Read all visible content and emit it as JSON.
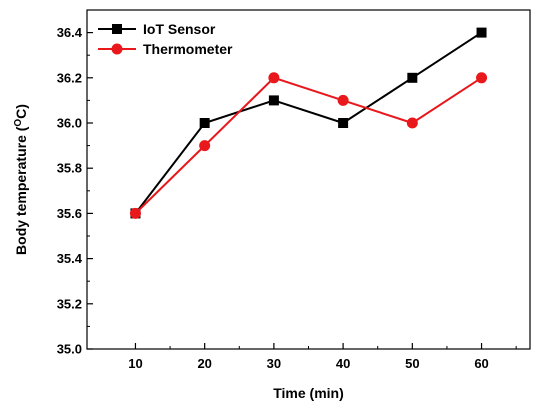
{
  "chart_data": {
    "type": "line",
    "x": [
      10,
      20,
      30,
      40,
      50,
      60
    ],
    "series": [
      {
        "name": "IoT Sensor",
        "values": [
          35.6,
          36.0,
          36.1,
          36.0,
          36.2,
          36.4
        ],
        "color": "#000000",
        "marker": "square"
      },
      {
        "name": "Thermometer",
        "values": [
          35.6,
          35.9,
          36.2,
          36.1,
          36.0,
          36.2
        ],
        "color": "#e8181c",
        "marker": "circle"
      }
    ],
    "xlabel": "Time (min)",
    "ylabel_main": "Body temperature (",
    "ylabel_sup": "O",
    "ylabel_tail": "C)",
    "xticks": [
      "10",
      "20",
      "30",
      "40",
      "50",
      "60"
    ],
    "yticks": [
      "35.0",
      "35.2",
      "35.4",
      "35.6",
      "35.8",
      "36.0",
      "36.2",
      "36.4"
    ],
    "xlim": [
      3,
      67
    ],
    "ylim": [
      35.0,
      36.5
    ],
    "grid": false,
    "legend_position": "top-left"
  }
}
